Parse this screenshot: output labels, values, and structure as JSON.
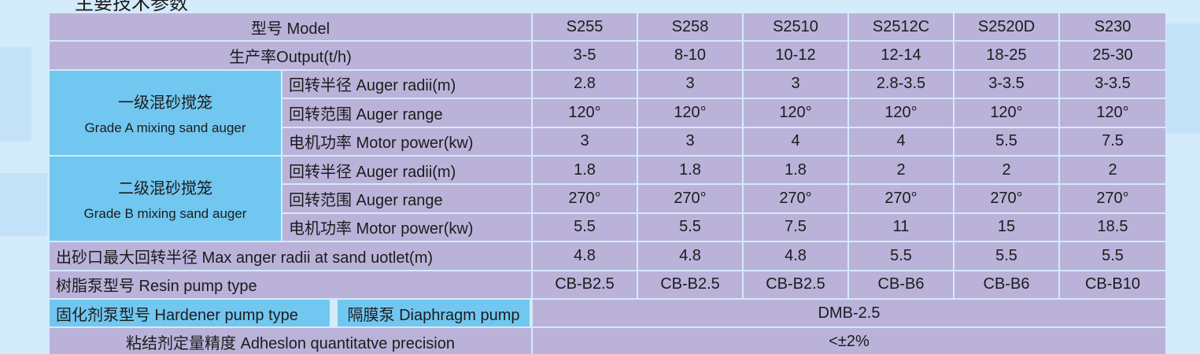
{
  "title": "主要技术参数",
  "table": {
    "header": {
      "label": "型号 Model",
      "cells": [
        "S255",
        "S258",
        "S2510",
        "S2512C",
        "S2520D",
        "S230"
      ]
    },
    "output": {
      "label": "生产率Output(t/h)",
      "cells": [
        "3-5",
        "8-10",
        "10-12",
        "12-14",
        "18-25",
        "25-30"
      ]
    },
    "groups": [
      {
        "name": "一级混砂搅笼",
        "name_en": "Grade A mixing sand auger",
        "rows": [
          {
            "label": "回转半径 Auger radii(m)",
            "cells": [
              "2.8",
              "3",
              "3",
              "2.8-3.5",
              "3-3.5",
              "3-3.5"
            ]
          },
          {
            "label": "回转范围 Auger range",
            "cells": [
              "120°",
              "120°",
              "120°",
              "120°",
              "120°",
              "120°"
            ]
          },
          {
            "label": "电机功率 Motor power(kw)",
            "cells": [
              "3",
              "3",
              "4",
              "4",
              "5.5",
              "7.5"
            ]
          }
        ]
      },
      {
        "name": "二级混砂搅笼",
        "name_en": "Grade B mixing sand auger",
        "rows": [
          {
            "label": "回转半径 Auger radii(m)",
            "cells": [
              "1.8",
              "1.8",
              "1.8",
              "2",
              "2",
              "2"
            ]
          },
          {
            "label": "回转范围 Auger range",
            "cells": [
              "270°",
              "270°",
              "270°",
              "270°",
              "270°",
              "270°"
            ]
          },
          {
            "label": "电机功率 Motor power(kw)",
            "cells": [
              "5.5",
              "5.5",
              "7.5",
              "11",
              "15",
              "18.5"
            ]
          }
        ]
      }
    ],
    "sand_outlet": {
      "label": "出砂口最大回转半径 Max anger radii at sand uotlet(m)",
      "cells": [
        "4.8",
        "4.8",
        "4.8",
        "5.5",
        "5.5",
        "5.5"
      ]
    },
    "resin_pump": {
      "label": "树脂泵型号  Resin pump type",
      "cells": [
        "CB-B2.5",
        "CB-B2.5",
        "CB-B2.5",
        "CB-B6",
        "CB-B6",
        "CB-B10"
      ]
    },
    "hardener": {
      "label": "固化剂泵型号 Hardener pump type",
      "type": "隔膜泵  Diaphragm pump",
      "value": "DMB-2.5"
    },
    "precision": {
      "label": "粘结剂定量精度 Adheslon quantitatve precision",
      "value": "<±2%"
    }
  }
}
